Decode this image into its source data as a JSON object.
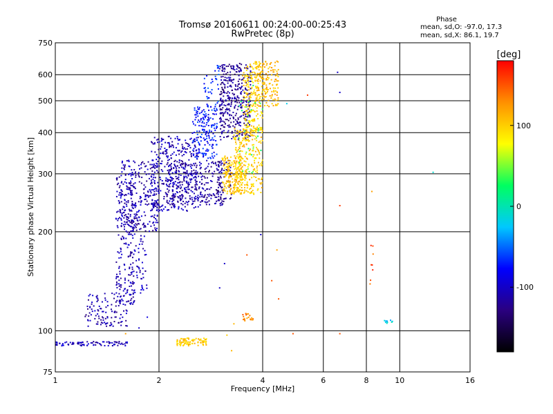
{
  "chart_data": {
    "type": "scatter",
    "title": "Tromsø 20160611 00:24:00-00:25:43",
    "subtitle": "RwPretec (8p)",
    "xlabel": "Frequency [MHz]",
    "ylabel": "Stationary phase Virtual Height [km]",
    "x_scale": "log",
    "y_scale": "log",
    "xlim": [
      1,
      16
    ],
    "ylim": [
      75,
      750
    ],
    "x_ticks": [
      1,
      2,
      4,
      6,
      8,
      10,
      16
    ],
    "x_tick_labels": [
      "1",
      "2",
      "4",
      "6",
      "8",
      "10",
      "16"
    ],
    "y_ticks": [
      75,
      100,
      200,
      300,
      400,
      500,
      600,
      750
    ],
    "y_tick_labels": [
      "75",
      "100",
      "200",
      "300",
      "400",
      "500",
      "600",
      "750"
    ],
    "grid": true,
    "colorbar": {
      "label": "[deg]",
      "range": [
        -180,
        180
      ],
      "tick_values": [
        -100,
        0,
        100
      ],
      "tick_labels": [
        "-100",
        "0",
        "100"
      ],
      "colormap": [
        "#000000",
        "#2a0080",
        "#0000ff",
        "#00c8ff",
        "#00ff60",
        "#ffff00",
        "#ff9000",
        "#ff0000"
      ]
    },
    "phase_stats": {
      "heading": "Phase",
      "o_line": "mean, sd,O: -97.0, 17.3",
      "x_line": "mean, sd,X: 86.1, 19.7"
    },
    "clusters": [
      {
        "x_range": [
          1.0,
          1.62
        ],
        "y_range": [
          90,
          93
        ],
        "phase": -105,
        "count": 90
      },
      {
        "x_range": [
          1.22,
          1.62
        ],
        "y_range": [
          103,
          130
        ],
        "phase": -110,
        "count": 110
      },
      {
        "x_range": [
          1.5,
          1.7
        ],
        "y_range": [
          120,
          300
        ],
        "phase": -110,
        "count": 220
      },
      {
        "x_range": [
          1.55,
          2.0
        ],
        "y_range": [
          200,
          330
        ],
        "phase": -110,
        "count": 280
      },
      {
        "x_range": [
          1.65,
          1.85
        ],
        "y_range": [
          130,
          200
        ],
        "phase": -105,
        "count": 60
      },
      {
        "x_range": [
          1.9,
          2.6
        ],
        "y_range": [
          230,
          390
        ],
        "phase": -108,
        "count": 350
      },
      {
        "x_range": [
          2.1,
          3.1
        ],
        "y_range": [
          240,
          330
        ],
        "phase": -115,
        "count": 280
      },
      {
        "x_range": [
          2.5,
          2.95
        ],
        "y_range": [
          330,
          480
        ],
        "phase": -75,
        "count": 180
      },
      {
        "x_range": [
          2.7,
          3.0
        ],
        "y_range": [
          480,
          650
        ],
        "phase": -65,
        "count": 40
      },
      {
        "x_range": [
          3.0,
          3.7
        ],
        "y_range": [
          380,
          650
        ],
        "phase": -120,
        "count": 380
      },
      {
        "x_range": [
          2.95,
          3.25
        ],
        "y_range": [
          250,
          330
        ],
        "phase": -125,
        "count": 60
      },
      {
        "x_range": [
          3.05,
          3.5
        ],
        "y_range": [
          260,
          340
        ],
        "phase": 105,
        "count": 180
      },
      {
        "x_range": [
          3.3,
          4.0
        ],
        "y_range": [
          260,
          420
        ],
        "phase": 100,
        "count": 280
      },
      {
        "x_range": [
          3.5,
          4.0
        ],
        "y_range": [
          400,
          650
        ],
        "phase": 95,
        "count": 200
      },
      {
        "x_range": [
          3.8,
          4.45
        ],
        "y_range": [
          480,
          660
        ],
        "phase": 110,
        "count": 160
      },
      {
        "x_range": [
          3.4,
          4.0
        ],
        "y_range": [
          300,
          560
        ],
        "phase": 35,
        "count": 30
      },
      {
        "x_range": [
          2.25,
          2.75
        ],
        "y_range": [
          90,
          95
        ],
        "phase": 100,
        "count": 90
      },
      {
        "x_range": [
          3.5,
          3.75
        ],
        "y_range": [
          107,
          113
        ],
        "phase": 130,
        "count": 20
      },
      {
        "x_range": [
          8.2,
          8.4
        ],
        "y_range": [
          125,
          185
        ],
        "phase": 150,
        "count": 8
      },
      {
        "x_range": [
          9.0,
          9.6
        ],
        "y_range": [
          104,
          108
        ],
        "phase": -20,
        "count": 10
      }
    ],
    "points": [
      {
        "x": 6.6,
        "y": 610,
        "phase": -100
      },
      {
        "x": 6.7,
        "y": 530,
        "phase": -100
      },
      {
        "x": 5.4,
        "y": 520,
        "phase": 160
      },
      {
        "x": 4.7,
        "y": 490,
        "phase": -20
      },
      {
        "x": 12.5,
        "y": 303,
        "phase": -10
      },
      {
        "x": 6.7,
        "y": 240,
        "phase": 160
      },
      {
        "x": 8.3,
        "y": 265,
        "phase": 120
      },
      {
        "x": 3.95,
        "y": 196,
        "phase": -100
      },
      {
        "x": 4.4,
        "y": 176,
        "phase": 120
      },
      {
        "x": 3.6,
        "y": 170,
        "phase": 150
      },
      {
        "x": 3.1,
        "y": 160,
        "phase": -100
      },
      {
        "x": 3.0,
        "y": 135,
        "phase": -100
      },
      {
        "x": 4.25,
        "y": 142,
        "phase": 150
      },
      {
        "x": 4.45,
        "y": 125,
        "phase": 150
      },
      {
        "x": 3.3,
        "y": 105,
        "phase": 110
      },
      {
        "x": 3.15,
        "y": 97,
        "phase": 100
      },
      {
        "x": 4.9,
        "y": 98,
        "phase": 150
      },
      {
        "x": 6.7,
        "y": 98,
        "phase": 150
      },
      {
        "x": 3.25,
        "y": 87,
        "phase": 110
      },
      {
        "x": 1.6,
        "y": 98,
        "phase": 120
      },
      {
        "x": 1.75,
        "y": 102,
        "phase": -100
      },
      {
        "x": 1.85,
        "y": 110,
        "phase": -90
      }
    ]
  }
}
